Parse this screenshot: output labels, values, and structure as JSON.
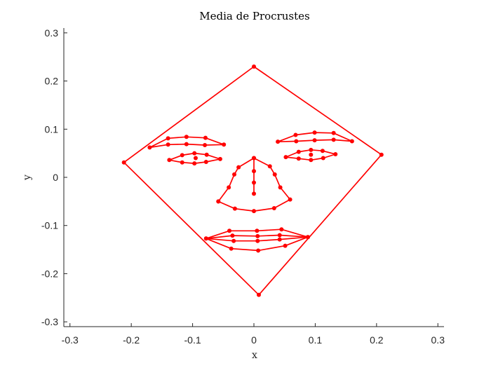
{
  "chart_data": {
    "type": "line",
    "title": "Media de Procrustes",
    "xlabel": "x",
    "ylabel": "y",
    "xlim": [
      -0.31,
      0.31
    ],
    "ylim": [
      -0.31,
      0.31
    ],
    "x_ticks": [
      -0.3,
      -0.2,
      -0.1,
      0,
      0.1,
      0.2,
      0.3
    ],
    "x_tick_labels": [
      "-0.3",
      "-0.2",
      "-0.1",
      "0",
      "0.1",
      "0.2",
      "0.3"
    ],
    "y_ticks": [
      -0.3,
      -0.2,
      -0.1,
      0,
      0.1,
      0.2,
      0.3
    ],
    "y_tick_labels": [
      "-0.3",
      "-0.2",
      "-0.1",
      "0",
      "0.1",
      "0.2",
      "0.3"
    ],
    "grid": false,
    "box": false,
    "series_color": "#ff0000",
    "series": [
      {
        "part": "outline",
        "closed": true,
        "points": [
          [
            0.0,
            0.23
          ],
          [
            0.208,
            0.047
          ],
          [
            0.008,
            -0.244
          ],
          [
            -0.212,
            0.031
          ]
        ]
      },
      {
        "part": "right-eyebrow",
        "closed": true,
        "points": [
          [
            0.039,
            0.074
          ],
          [
            0.068,
            0.088
          ],
          [
            0.099,
            0.093
          ],
          [
            0.13,
            0.092
          ],
          [
            0.16,
            0.075
          ],
          [
            0.13,
            0.078
          ],
          [
            0.099,
            0.077
          ],
          [
            0.069,
            0.075
          ]
        ]
      },
      {
        "part": "left-eyebrow",
        "closed": true,
        "points": [
          [
            -0.17,
            0.062
          ],
          [
            -0.14,
            0.081
          ],
          [
            -0.11,
            0.084
          ],
          [
            -0.079,
            0.082
          ],
          [
            -0.049,
            0.068
          ],
          [
            -0.08,
            0.067
          ],
          [
            -0.11,
            0.069
          ],
          [
            -0.14,
            0.068
          ]
        ]
      },
      {
        "part": "left-eye",
        "closed": true,
        "points": [
          [
            -0.138,
            0.036
          ],
          [
            -0.117,
            0.046
          ],
          [
            -0.097,
            0.05
          ],
          [
            -0.077,
            0.047
          ],
          [
            -0.055,
            0.038
          ],
          [
            -0.078,
            0.032
          ],
          [
            -0.097,
            0.029
          ],
          [
            -0.117,
            0.031
          ]
        ]
      },
      {
        "part": "right-eye",
        "closed": true,
        "points": [
          [
            0.052,
            0.042
          ],
          [
            0.073,
            0.053
          ],
          [
            0.093,
            0.057
          ],
          [
            0.112,
            0.055
          ],
          [
            0.133,
            0.048
          ],
          [
            0.113,
            0.04
          ],
          [
            0.093,
            0.036
          ],
          [
            0.073,
            0.039
          ]
        ]
      },
      {
        "part": "nose-outline",
        "closed": false,
        "points": [
          [
            -0.058,
            -0.05
          ],
          [
            -0.041,
            -0.021
          ],
          [
            -0.032,
            0.006
          ],
          [
            -0.025,
            0.021
          ],
          [
            0.0,
            0.04
          ],
          [
            0.026,
            0.023
          ],
          [
            0.034,
            0.006
          ],
          [
            0.043,
            -0.021
          ],
          [
            0.059,
            -0.046
          ],
          [
            0.033,
            -0.064
          ],
          [
            0.0,
            -0.07
          ],
          [
            -0.031,
            -0.065
          ],
          [
            -0.058,
            -0.05
          ]
        ]
      },
      {
        "part": "nose-ridge",
        "closed": false,
        "points": [
          [
            0.0,
            0.04
          ],
          [
            0.0,
            0.013
          ],
          [
            0.0,
            -0.011
          ],
          [
            0.0,
            -0.034
          ]
        ]
      },
      {
        "part": "mouth-outer",
        "closed": true,
        "points": [
          [
            -0.078,
            -0.127
          ],
          [
            -0.04,
            -0.111
          ],
          [
            0.005,
            -0.111
          ],
          [
            0.045,
            -0.108
          ],
          [
            0.088,
            -0.124
          ],
          [
            0.051,
            -0.142
          ],
          [
            0.007,
            -0.152
          ],
          [
            -0.037,
            -0.148
          ]
        ]
      },
      {
        "part": "mouth-inner",
        "closed": true,
        "points": [
          [
            -0.078,
            -0.127
          ],
          [
            -0.035,
            -0.121
          ],
          [
            0.006,
            -0.122
          ],
          [
            0.042,
            -0.12
          ],
          [
            0.088,
            -0.124
          ],
          [
            0.042,
            -0.129
          ],
          [
            0.006,
            -0.132
          ],
          [
            -0.033,
            -0.132
          ]
        ]
      }
    ],
    "extra_points": [
      [
        -0.095,
        0.04
      ],
      [
        0.093,
        0.047
      ]
    ]
  }
}
